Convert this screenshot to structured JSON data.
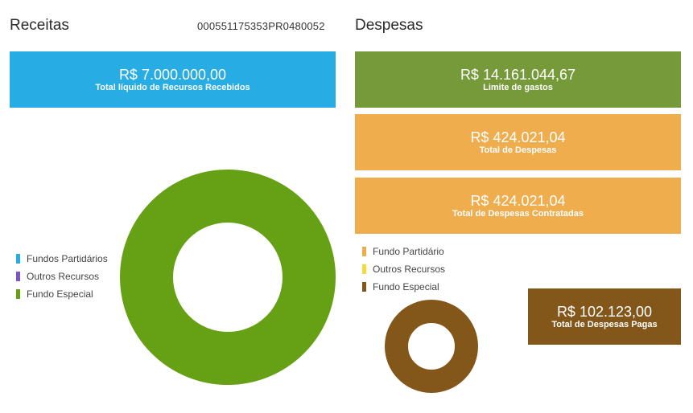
{
  "receitas": {
    "title": "Receitas",
    "code": "000551175353PR0480052",
    "total_box": {
      "value": "R$ 7.000.000,00",
      "label": "Total líquido de Recursos Recebidos",
      "color": "#27ade3"
    },
    "legend": [
      {
        "label": "Fundos Partidários",
        "color": "#27ade3"
      },
      {
        "label": "Outros Recursos",
        "color": "#7b55c2"
      },
      {
        "label": "Fundo Especial",
        "color": "#66a014"
      }
    ]
  },
  "despesas": {
    "title": "Despesas",
    "boxes": [
      {
        "value": "R$ 14.161.044,67",
        "label": "Limite de gastos",
        "color": "#76993a"
      },
      {
        "value": "R$ 424.021,04",
        "label": "Total de Despesas",
        "color": "#efad4e"
      },
      {
        "value": "R$ 424.021,04",
        "label": "Total de Despesas Contratadas",
        "color": "#efad4e"
      }
    ],
    "paid_box": {
      "value": "R$ 102.123,00",
      "label": "Total de Despesas Pagas",
      "color": "#83561a"
    },
    "legend": [
      {
        "label": "Fundo Partidário",
        "color": "#efad4e"
      },
      {
        "label": "Outros Recursos",
        "color": "#f1dc3c"
      },
      {
        "label": "Fundo Especial",
        "color": "#83561a"
      }
    ]
  },
  "chart_data": [
    {
      "type": "pie",
      "series": [
        {
          "name": "Fundos Partidários",
          "values": [
            0
          ]
        },
        {
          "name": "Outros Recursos",
          "values": [
            0
          ]
        },
        {
          "name": "Fundo Especial",
          "values": [
            7000000
          ]
        }
      ],
      "legend": "left"
    },
    {
      "type": "pie",
      "series": [
        {
          "name": "Fundo Partidário",
          "values": [
            0
          ]
        },
        {
          "name": "Outros Recursos",
          "values": [
            0
          ]
        },
        {
          "name": "Fundo Especial",
          "values": [
            102123
          ]
        }
      ],
      "legend": "top-left"
    }
  ]
}
